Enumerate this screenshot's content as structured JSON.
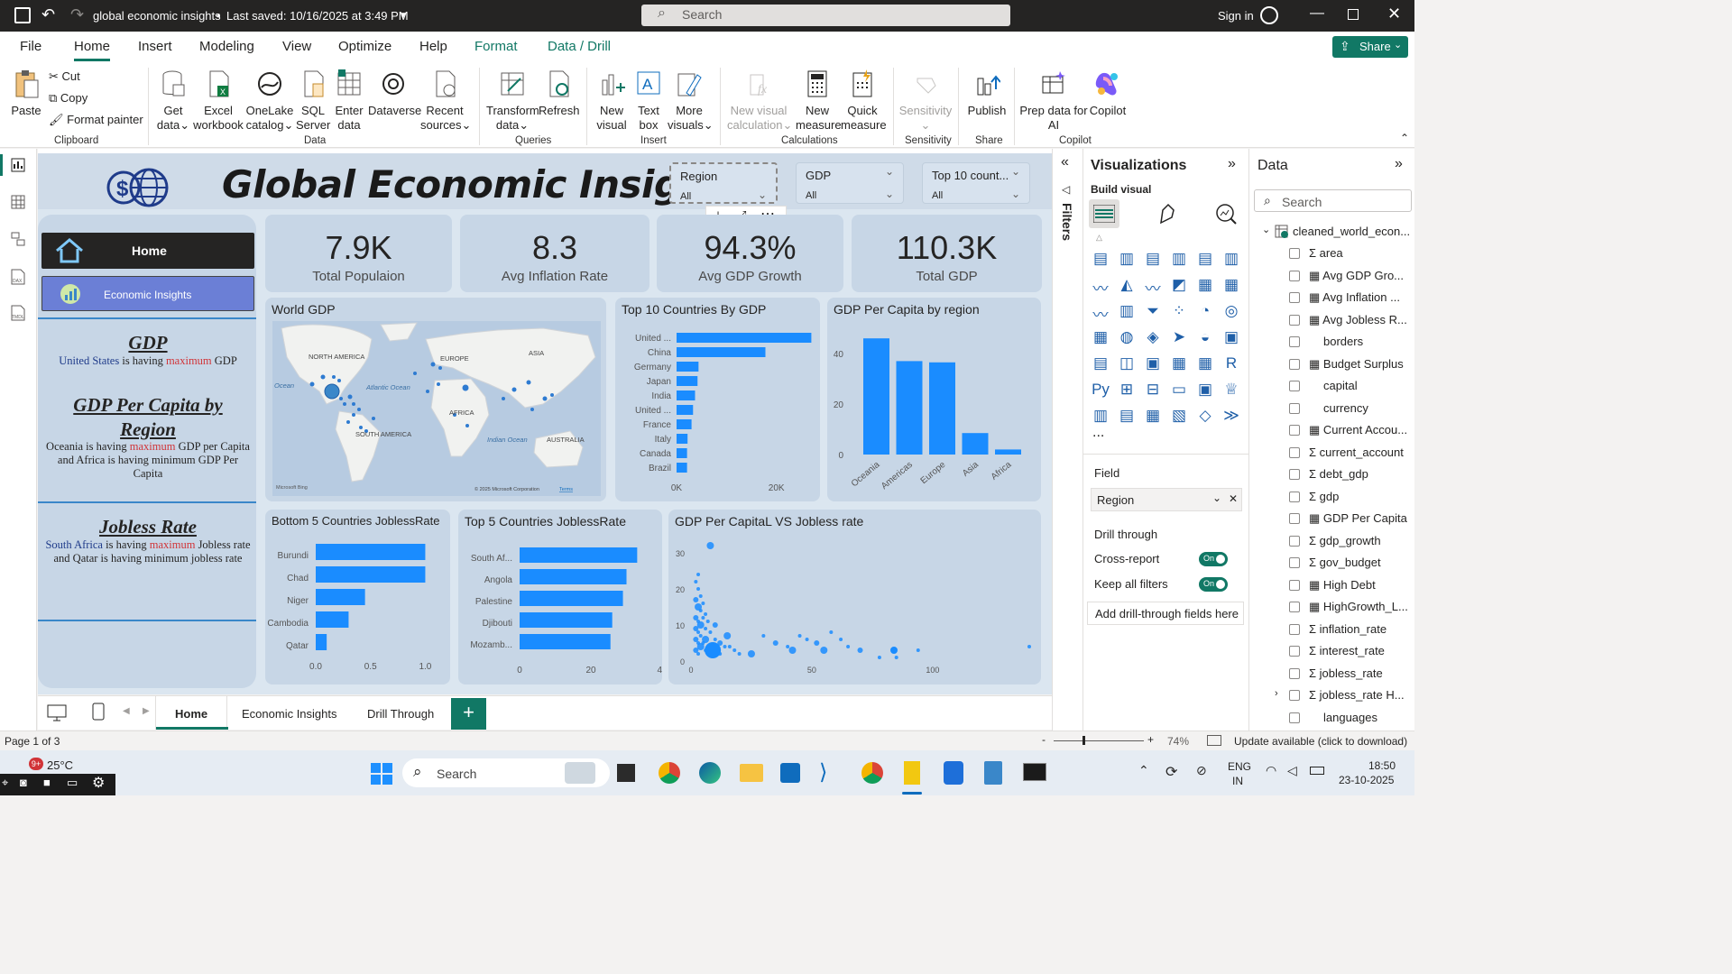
{
  "titlebar": {
    "title": "global economic insights",
    "saved": "Last saved: 10/16/2025 at 3:49 PM",
    "search": "Search",
    "signin": "Sign in"
  },
  "ribbon_tabs": [
    "File",
    "Home",
    "Insert",
    "Modeling",
    "View",
    "Optimize",
    "Help",
    "Format",
    "Data / Drill"
  ],
  "share_label": "Share",
  "ribbon": {
    "clipboard": {
      "paste": "Paste",
      "cut": "Cut",
      "copy": "Copy",
      "format_painter": "Format painter",
      "group": "Clipboard"
    },
    "data": {
      "get_data": [
        "Get",
        "data"
      ],
      "excel": [
        "Excel",
        "workbook"
      ],
      "onelake": [
        "OneLake",
        "catalog"
      ],
      "sql": [
        "SQL",
        "Server"
      ],
      "enter": [
        "Enter",
        "data"
      ],
      "dataverse": "Dataverse",
      "recent": [
        "Recent",
        "sources"
      ],
      "group": "Data"
    },
    "queries": {
      "transform": [
        "Transform",
        "data"
      ],
      "refresh": "Refresh",
      "group": "Queries"
    },
    "insert": {
      "new_visual": [
        "New",
        "visual"
      ],
      "text_box": [
        "Text",
        "box"
      ],
      "more_visuals": [
        "More",
        "visuals"
      ],
      "group": "Insert"
    },
    "calculations": {
      "new_visual_calc": [
        "New visual",
        "calculation"
      ],
      "new_measure": [
        "New",
        "measure"
      ],
      "quick_measure": [
        "Quick",
        "measure"
      ],
      "group": "Calculations"
    },
    "sensitivity": {
      "label": "Sensitivity",
      "group": "Sensitivity"
    },
    "share": {
      "publish": "Publish",
      "group": "Share"
    },
    "copilot": {
      "prep": [
        "Prep data for",
        "AI"
      ],
      "copilot": "Copilot",
      "group": "Copilot"
    }
  },
  "report": {
    "title": "Global Economic Insights",
    "slicers": [
      {
        "label": "Region",
        "value": "All"
      },
      {
        "label": "GDP",
        "value": "All"
      },
      {
        "label": "Top 10 count...",
        "value": "All"
      }
    ],
    "kpis": [
      {
        "value": "7.9K",
        "label": "Total Populaion"
      },
      {
        "value": "8.3",
        "label": "Avg Inflation Rate"
      },
      {
        "value": "94.3%",
        "label": "Avg GDP Growth"
      },
      {
        "value": "110.3K",
        "label": "Total GDP"
      }
    ],
    "nav": {
      "home": "Home",
      "insights": "Economic Insights",
      "gdp_h": "GDP",
      "gdp_p1": "United States",
      "gdp_p2": " is having ",
      "gdp_p3": "maximum",
      "gdp_p4": " GDP",
      "pc_h": "GDP Per Capita by Region",
      "pc_p1": "Oceania is having ",
      "pc_p2": "maximum",
      "pc_p3": " GDP per Capita and Africa is having minimum GDP Per Capita",
      "jb_h": "Jobless Rate",
      "jb_p1": "South Africa",
      "jb_p2": " is having ",
      "jb_p3": "maximum",
      "jb_p4": " Jobless rate and Qatar is having  minimum jobless rate"
    },
    "map": {
      "title": "World GDP",
      "labels": [
        "NORTH AMERICA",
        "EUROPE",
        "ASIA",
        "Atlantic Ocean",
        "Ocean",
        "AFRICA",
        "SOUTH AMERICA",
        "Indian Ocean",
        "AUSTRALIA"
      ],
      "copyright": "© 2025 Microsoft Corporation",
      "terms": "Terms",
      "bing": "Microsoft Bing"
    }
  },
  "chart_data": [
    {
      "type": "bar",
      "orientation": "horizontal",
      "title": "Top 10 Countries By GDP",
      "categories": [
        "United ...",
        "China",
        "Germany",
        "Japan",
        "India",
        "United ...",
        "France",
        "Italy",
        "Canada",
        "Brazil"
      ],
      "values": [
        27000,
        17800,
        4400,
        4200,
        3700,
        3300,
        3000,
        2200,
        2100,
        2100
      ],
      "xticks": [
        "0K",
        "20K"
      ],
      "xlim": [
        0,
        30000
      ]
    },
    {
      "type": "bar",
      "orientation": "vertical",
      "title": "GDP Per Capita by region",
      "categories": [
        "Oceania",
        "Americas",
        "Europe",
        "Asia",
        "Africa"
      ],
      "values": [
        46,
        37,
        36.5,
        8.5,
        2
      ],
      "yticks": [
        "0",
        "20",
        "40"
      ],
      "ylim": [
        0,
        50
      ]
    },
    {
      "type": "bar",
      "orientation": "horizontal",
      "title": "Bottom 5 Countries JoblessRate",
      "categories": [
        "Burundi",
        "Chad",
        "Niger",
        "Cambodia",
        "Qatar"
      ],
      "values": [
        1.0,
        1.0,
        0.45,
        0.3,
        0.1
      ],
      "xticks": [
        "0.0",
        "0.5",
        "1.0"
      ],
      "xlim": [
        0,
        1.12
      ]
    },
    {
      "type": "bar",
      "orientation": "horizontal",
      "title": "Top 5 Countries JoblessRate",
      "categories": [
        "South Af...",
        "Angola",
        "Palestine",
        "Djibouti",
        "Mozamb..."
      ],
      "values": [
        33,
        30,
        29,
        26,
        25.5
      ],
      "xticks": [
        "0",
        "20",
        "40"
      ],
      "xlim": [
        0,
        40
      ]
    },
    {
      "type": "scatter",
      "title": "GDP Per CapitaL VS Jobless rate",
      "xticks": [
        "0",
        "50",
        "100"
      ],
      "yticks": [
        "0",
        "10",
        "20",
        "30"
      ],
      "xlim": [
        0,
        140
      ],
      "ylim": [
        0,
        33
      ],
      "points": [
        [
          8,
          32
        ],
        [
          3,
          24
        ],
        [
          2,
          22
        ],
        [
          3,
          20
        ],
        [
          4,
          18
        ],
        [
          2,
          17
        ],
        [
          5,
          16
        ],
        [
          3,
          15
        ],
        [
          4,
          14
        ],
        [
          6,
          13
        ],
        [
          2,
          12
        ],
        [
          5,
          12
        ],
        [
          3,
          11
        ],
        [
          7,
          11
        ],
        [
          4,
          10
        ],
        [
          2,
          9
        ],
        [
          6,
          9
        ],
        [
          3,
          8
        ],
        [
          8,
          8
        ],
        [
          4,
          7
        ],
        [
          2,
          6
        ],
        [
          6,
          6
        ],
        [
          10,
          6
        ],
        [
          3,
          5
        ],
        [
          5,
          5
        ],
        [
          12,
          5
        ],
        [
          14,
          4
        ],
        [
          16,
          4
        ],
        [
          4,
          4
        ],
        [
          8,
          4
        ],
        [
          2,
          3
        ],
        [
          6,
          3
        ],
        [
          9,
          3
        ],
        [
          18,
          3
        ],
        [
          20,
          2
        ],
        [
          25,
          2
        ],
        [
          3,
          2
        ],
        [
          7,
          2
        ],
        [
          12,
          2
        ],
        [
          30,
          7
        ],
        [
          35,
          5
        ],
        [
          40,
          4
        ],
        [
          42,
          3
        ],
        [
          45,
          7
        ],
        [
          48,
          6
        ],
        [
          52,
          5
        ],
        [
          58,
          8
        ],
        [
          62,
          6
        ],
        [
          65,
          4
        ],
        [
          55,
          3
        ],
        [
          70,
          3
        ],
        [
          78,
          1
        ],
        [
          85,
          1
        ],
        [
          94,
          3
        ],
        [
          140,
          4
        ],
        [
          10,
          10
        ],
        [
          15,
          7
        ]
      ]
    }
  ],
  "visualizations": {
    "title": "Visualizations",
    "build": "Build visual",
    "field": "Field",
    "field_value": "Region",
    "drill": "Drill through",
    "cross": "Cross-report",
    "keep": "Keep all filters",
    "on": "On",
    "add_drill": "Add drill-through fields here",
    "more": "..."
  },
  "filters_label": "Filters",
  "data_pane": {
    "title": "Data",
    "search": "Search",
    "table": "cleaned_world_econ...",
    "fields": [
      "area",
      "Avg GDP Gro...",
      "Avg Inflation ...",
      "Avg Jobless R...",
      "borders",
      "Budget Surplus",
      "capital",
      "currency",
      "Current Accou...",
      "current_account",
      "debt_gdp",
      "gdp",
      "GDP Per Capita",
      "gdp_growth",
      "gov_budget",
      "High Debt",
      "HighGrowth_L...",
      "inflation_rate",
      "interest_rate",
      "jobless_rate",
      "jobless_rate H...",
      "languages"
    ]
  },
  "pages": [
    "Home",
    "Economic Insights",
    "Drill Through"
  ],
  "add_page": "+",
  "status": {
    "page": "Page 1 of 3",
    "zoom": "74%",
    "update": "Update available (click to download)",
    "minus": "-",
    "plus": "+"
  },
  "taskbar": {
    "temp": "25°C",
    "badge": "9+",
    "search": "Search",
    "lang1": "ENG",
    "lang2": "IN",
    "time": "18:50",
    "date": "23-10-2025"
  }
}
